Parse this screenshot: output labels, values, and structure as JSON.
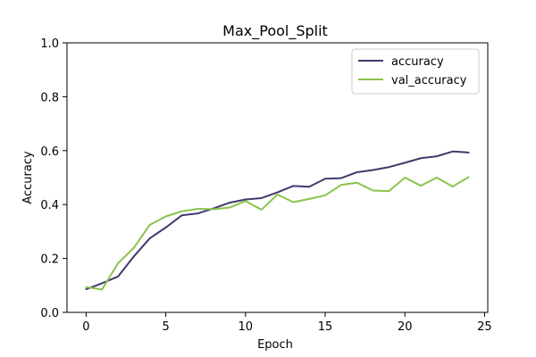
{
  "chart_data": {
    "type": "line",
    "title": "Max_Pool_Split",
    "xlabel": "Epoch",
    "ylabel": "Accuracy",
    "xlim": [
      -1.2,
      25.2
    ],
    "ylim": [
      0.0,
      1.0
    ],
    "xticks": [
      0,
      5,
      10,
      15,
      20,
      25
    ],
    "yticks": [
      0.0,
      0.2,
      0.4,
      0.6,
      0.8,
      1.0
    ],
    "xtick_labels": [
      "0",
      "5",
      "10",
      "15",
      "20",
      "25"
    ],
    "ytick_labels": [
      "0.0",
      "0.2",
      "0.4",
      "0.6",
      "0.8",
      "1.0"
    ],
    "grid": false,
    "legend_position": "top-right",
    "x": [
      0,
      1,
      2,
      3,
      4,
      5,
      6,
      7,
      8,
      9,
      10,
      11,
      12,
      13,
      14,
      15,
      16,
      17,
      18,
      19,
      20,
      21,
      22,
      23,
      24
    ],
    "series": [
      {
        "name": "accuracy",
        "color": "#3f3a6e",
        "values": [
          0.086,
          0.108,
          0.133,
          0.208,
          0.275,
          0.315,
          0.36,
          0.367,
          0.386,
          0.407,
          0.419,
          0.424,
          0.445,
          0.469,
          0.466,
          0.496,
          0.498,
          0.52,
          0.528,
          0.539,
          0.555,
          0.572,
          0.579,
          0.597,
          0.593
        ]
      },
      {
        "name": "val_accuracy",
        "color": "#8bc34a",
        "values": [
          0.094,
          0.085,
          0.182,
          0.24,
          0.325,
          0.356,
          0.375,
          0.384,
          0.383,
          0.389,
          0.413,
          0.381,
          0.437,
          0.409,
          0.421,
          0.434,
          0.473,
          0.481,
          0.452,
          0.45,
          0.5,
          0.47,
          0.5,
          0.467,
          0.502
        ]
      }
    ]
  }
}
